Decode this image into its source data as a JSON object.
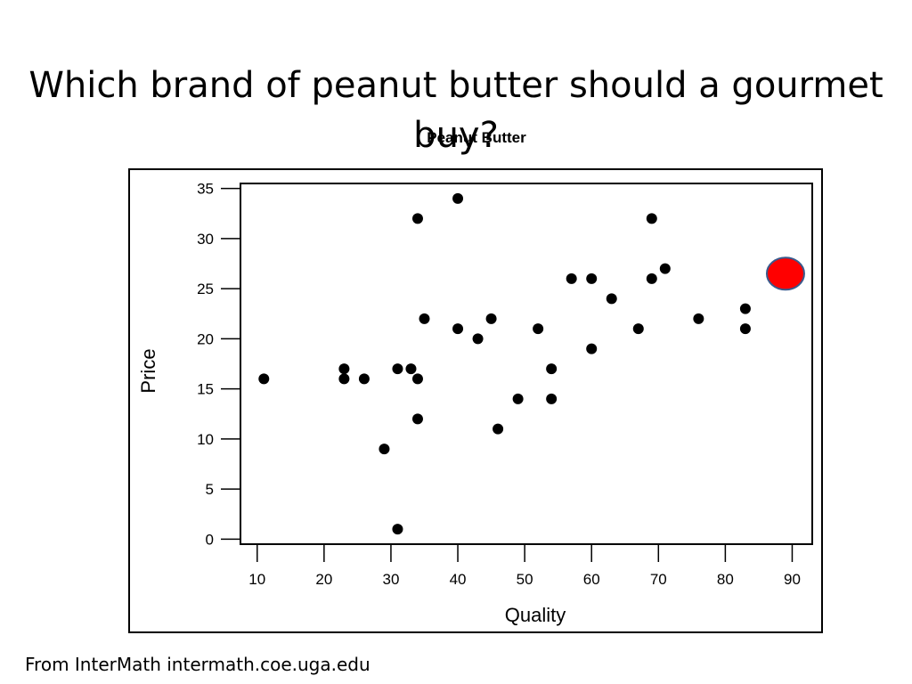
{
  "slide": {
    "title": "Which brand of peanut butter should a gourmet buy?",
    "source": "From InterMath intermath.coe.uga.edu"
  },
  "chart_data": {
    "type": "scatter",
    "title": "Peanut Butter",
    "xlabel": "Quality",
    "ylabel": "Price",
    "xlim": [
      7.5,
      93
    ],
    "ylim": [
      -0.5,
      35.5
    ],
    "xticks": [
      10,
      20,
      30,
      40,
      50,
      60,
      70,
      80,
      90
    ],
    "yticks": [
      0,
      5,
      10,
      15,
      20,
      25,
      30,
      35
    ],
    "grid": false,
    "point_color": "#000000",
    "highlight_color": "#ff0000",
    "points": [
      {
        "x": 11,
        "y": 16
      },
      {
        "x": 23,
        "y": 17
      },
      {
        "x": 23,
        "y": 16
      },
      {
        "x": 26,
        "y": 16
      },
      {
        "x": 29,
        "y": 9
      },
      {
        "x": 31,
        "y": 17
      },
      {
        "x": 31,
        "y": 1
      },
      {
        "x": 33,
        "y": 17
      },
      {
        "x": 34,
        "y": 16
      },
      {
        "x": 34,
        "y": 12
      },
      {
        "x": 34,
        "y": 32
      },
      {
        "x": 35,
        "y": 22
      },
      {
        "x": 40,
        "y": 34
      },
      {
        "x": 40,
        "y": 21
      },
      {
        "x": 43,
        "y": 20
      },
      {
        "x": 45,
        "y": 22
      },
      {
        "x": 46,
        "y": 11
      },
      {
        "x": 49,
        "y": 14
      },
      {
        "x": 52,
        "y": 21
      },
      {
        "x": 54,
        "y": 17
      },
      {
        "x": 54,
        "y": 14
      },
      {
        "x": 57,
        "y": 26
      },
      {
        "x": 60,
        "y": 26
      },
      {
        "x": 60,
        "y": 19
      },
      {
        "x": 63,
        "y": 24
      },
      {
        "x": 67,
        "y": 21
      },
      {
        "x": 69,
        "y": 32
      },
      {
        "x": 69,
        "y": 26
      },
      {
        "x": 71,
        "y": 27
      },
      {
        "x": 76,
        "y": 22
      },
      {
        "x": 83,
        "y": 23
      },
      {
        "x": 83,
        "y": 21
      }
    ],
    "highlight": {
      "x": 89,
      "y": 26.5
    }
  }
}
